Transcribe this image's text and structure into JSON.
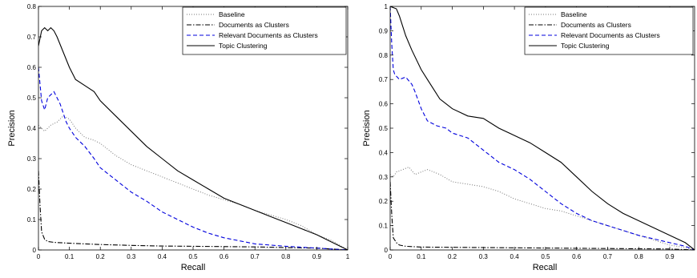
{
  "chart_data": [
    {
      "type": "line",
      "xlabel": "Recall",
      "ylabel": "Precision",
      "xlim": [
        0,
        1
      ],
      "ylim": [
        0,
        0.8
      ],
      "x_ticks": [
        "0",
        "0.1",
        "0.2",
        "0.3",
        "0.4",
        "0.5",
        "0.6",
        "0.7",
        "0.8",
        "0.9",
        "1"
      ],
      "y_ticks": [
        "0",
        "0.1",
        "0.2",
        "0.3",
        "0.4",
        "0.5",
        "0.6",
        "0.7",
        "0.8"
      ],
      "grid": false,
      "legend_position": "top-right",
      "series": [
        {
          "name": "Baseline",
          "color": "#777777",
          "style": "dotted",
          "points": [
            [
              0,
              0.41
            ],
            [
              0.02,
              0.39
            ],
            [
              0.04,
              0.41
            ],
            [
              0.06,
              0.42
            ],
            [
              0.08,
              0.44
            ],
            [
              0.1,
              0.43
            ],
            [
              0.12,
              0.4
            ],
            [
              0.15,
              0.37
            ],
            [
              0.18,
              0.36
            ],
            [
              0.2,
              0.35
            ],
            [
              0.25,
              0.31
            ],
            [
              0.3,
              0.28
            ],
            [
              0.35,
              0.26
            ],
            [
              0.4,
              0.24
            ],
            [
              0.45,
              0.22
            ],
            [
              0.5,
              0.2
            ],
            [
              0.55,
              0.18
            ],
            [
              0.6,
              0.165
            ],
            [
              0.65,
              0.15
            ],
            [
              0.7,
              0.13
            ],
            [
              0.75,
              0.115
            ],
            [
              0.8,
              0.1
            ],
            [
              0.85,
              0.08
            ],
            [
              0.9,
              0.05
            ],
            [
              0.95,
              0.03
            ],
            [
              1.0,
              0.0
            ]
          ]
        },
        {
          "name": "Documents as Clusters",
          "color": "#000000",
          "style": "dashdot",
          "points": [
            [
              0,
              0.26
            ],
            [
              0.005,
              0.15
            ],
            [
              0.01,
              0.06
            ],
            [
              0.02,
              0.035
            ],
            [
              0.03,
              0.028
            ],
            [
              0.05,
              0.025
            ],
            [
              0.1,
              0.022
            ],
            [
              0.2,
              0.018
            ],
            [
              0.3,
              0.015
            ],
            [
              0.4,
              0.013
            ],
            [
              0.5,
              0.012
            ],
            [
              0.6,
              0.011
            ],
            [
              0.7,
              0.01
            ],
            [
              0.8,
              0.008
            ],
            [
              0.9,
              0.006
            ],
            [
              1.0,
              0.0
            ]
          ]
        },
        {
          "name": "Relevant Documents as Clusters",
          "color": "#0000dd",
          "style": "dashed",
          "points": [
            [
              0,
              0.6
            ],
            [
              0.01,
              0.49
            ],
            [
              0.02,
              0.46
            ],
            [
              0.03,
              0.5
            ],
            [
              0.05,
              0.52
            ],
            [
              0.07,
              0.48
            ],
            [
              0.09,
              0.42
            ],
            [
              0.1,
              0.4
            ],
            [
              0.12,
              0.37
            ],
            [
              0.15,
              0.34
            ],
            [
              0.18,
              0.3
            ],
            [
              0.2,
              0.27
            ],
            [
              0.25,
              0.23
            ],
            [
              0.3,
              0.19
            ],
            [
              0.35,
              0.16
            ],
            [
              0.4,
              0.125
            ],
            [
              0.45,
              0.1
            ],
            [
              0.5,
              0.075
            ],
            [
              0.55,
              0.055
            ],
            [
              0.6,
              0.04
            ],
            [
              0.65,
              0.03
            ],
            [
              0.7,
              0.02
            ],
            [
              0.8,
              0.012
            ],
            [
              0.9,
              0.006
            ],
            [
              1.0,
              0.0
            ]
          ]
        },
        {
          "name": "Topic Clustering",
          "color": "#000000",
          "style": "solid",
          "points": [
            [
              0,
              0.67
            ],
            [
              0.01,
              0.72
            ],
            [
              0.02,
              0.73
            ],
            [
              0.03,
              0.72
            ],
            [
              0.04,
              0.73
            ],
            [
              0.05,
              0.72
            ],
            [
              0.06,
              0.7
            ],
            [
              0.08,
              0.65
            ],
            [
              0.1,
              0.6
            ],
            [
              0.12,
              0.56
            ],
            [
              0.15,
              0.54
            ],
            [
              0.18,
              0.52
            ],
            [
              0.2,
              0.49
            ],
            [
              0.25,
              0.44
            ],
            [
              0.3,
              0.39
            ],
            [
              0.35,
              0.34
            ],
            [
              0.4,
              0.3
            ],
            [
              0.45,
              0.26
            ],
            [
              0.5,
              0.23
            ],
            [
              0.55,
              0.2
            ],
            [
              0.6,
              0.17
            ],
            [
              0.65,
              0.15
            ],
            [
              0.7,
              0.13
            ],
            [
              0.75,
              0.11
            ],
            [
              0.8,
              0.09
            ],
            [
              0.85,
              0.07
            ],
            [
              0.9,
              0.05
            ],
            [
              0.95,
              0.025
            ],
            [
              1.0,
              0.0
            ]
          ]
        }
      ]
    },
    {
      "type": "line",
      "xlabel": "Recall",
      "ylabel": "Precision",
      "xlim": [
        0,
        0.98
      ],
      "ylim": [
        0,
        1
      ],
      "x_ticks": [
        "0",
        "0.1",
        "0.2",
        "0.3",
        "0.4",
        "0.5",
        "0.6",
        "0.7",
        "0.8",
        "0.9"
      ],
      "y_ticks": [
        "0",
        "0.1",
        "0.2",
        "0.3",
        "0.4",
        "0.5",
        "0.6",
        "0.7",
        "0.8",
        "0.9",
        "1"
      ],
      "grid": false,
      "legend_position": "top-right",
      "series": [
        {
          "name": "Baseline",
          "color": "#777777",
          "style": "dotted",
          "points": [
            [
              0,
              0.31
            ],
            [
              0.01,
              0.3
            ],
            [
              0.02,
              0.32
            ],
            [
              0.04,
              0.33
            ],
            [
              0.06,
              0.34
            ],
            [
              0.08,
              0.31
            ],
            [
              0.1,
              0.32
            ],
            [
              0.12,
              0.33
            ],
            [
              0.14,
              0.32
            ],
            [
              0.16,
              0.31
            ],
            [
              0.2,
              0.28
            ],
            [
              0.25,
              0.27
            ],
            [
              0.3,
              0.26
            ],
            [
              0.35,
              0.24
            ],
            [
              0.4,
              0.21
            ],
            [
              0.45,
              0.19
            ],
            [
              0.5,
              0.17
            ],
            [
              0.55,
              0.16
            ],
            [
              0.6,
              0.14
            ],
            [
              0.65,
              0.12
            ],
            [
              0.7,
              0.1
            ],
            [
              0.75,
              0.08
            ],
            [
              0.8,
              0.06
            ],
            [
              0.85,
              0.04
            ],
            [
              0.9,
              0.02
            ],
            [
              0.95,
              0.01
            ],
            [
              0.98,
              0.0
            ]
          ]
        },
        {
          "name": "Documents as Clusters",
          "color": "#000000",
          "style": "dashdot",
          "points": [
            [
              0,
              0.28
            ],
            [
              0.005,
              0.15
            ],
            [
              0.01,
              0.05
            ],
            [
              0.02,
              0.03
            ],
            [
              0.03,
              0.02
            ],
            [
              0.05,
              0.015
            ],
            [
              0.1,
              0.012
            ],
            [
              0.3,
              0.01
            ],
            [
              0.5,
              0.008
            ],
            [
              0.7,
              0.006
            ],
            [
              0.9,
              0.004
            ],
            [
              0.98,
              0.0
            ]
          ]
        },
        {
          "name": "Relevant Documents as Clusters",
          "color": "#0000dd",
          "style": "dashed",
          "points": [
            [
              0,
              1.0
            ],
            [
              0.005,
              0.85
            ],
            [
              0.01,
              0.74
            ],
            [
              0.015,
              0.72
            ],
            [
              0.03,
              0.7
            ],
            [
              0.05,
              0.71
            ],
            [
              0.07,
              0.68
            ],
            [
              0.08,
              0.65
            ],
            [
              0.1,
              0.58
            ],
            [
              0.12,
              0.53
            ],
            [
              0.15,
              0.51
            ],
            [
              0.18,
              0.5
            ],
            [
              0.2,
              0.48
            ],
            [
              0.25,
              0.46
            ],
            [
              0.3,
              0.41
            ],
            [
              0.35,
              0.36
            ],
            [
              0.4,
              0.33
            ],
            [
              0.45,
              0.29
            ],
            [
              0.5,
              0.24
            ],
            [
              0.55,
              0.19
            ],
            [
              0.6,
              0.15
            ],
            [
              0.65,
              0.12
            ],
            [
              0.7,
              0.1
            ],
            [
              0.75,
              0.08
            ],
            [
              0.8,
              0.06
            ],
            [
              0.85,
              0.045
            ],
            [
              0.9,
              0.03
            ],
            [
              0.95,
              0.015
            ],
            [
              0.98,
              0.0
            ]
          ]
        },
        {
          "name": "Topic Clustering",
          "color": "#000000",
          "style": "solid",
          "points": [
            [
              0,
              1.0
            ],
            [
              0.02,
              0.99
            ],
            [
              0.03,
              0.96
            ],
            [
              0.05,
              0.88
            ],
            [
              0.07,
              0.82
            ],
            [
              0.1,
              0.74
            ],
            [
              0.12,
              0.7
            ],
            [
              0.14,
              0.66
            ],
            [
              0.16,
              0.62
            ],
            [
              0.2,
              0.58
            ],
            [
              0.25,
              0.55
            ],
            [
              0.3,
              0.54
            ],
            [
              0.35,
              0.5
            ],
            [
              0.4,
              0.47
            ],
            [
              0.45,
              0.44
            ],
            [
              0.5,
              0.4
            ],
            [
              0.55,
              0.36
            ],
            [
              0.6,
              0.3
            ],
            [
              0.65,
              0.24
            ],
            [
              0.7,
              0.19
            ],
            [
              0.75,
              0.15
            ],
            [
              0.8,
              0.12
            ],
            [
              0.85,
              0.09
            ],
            [
              0.9,
              0.06
            ],
            [
              0.95,
              0.03
            ],
            [
              0.98,
              0.0
            ]
          ]
        }
      ]
    }
  ]
}
